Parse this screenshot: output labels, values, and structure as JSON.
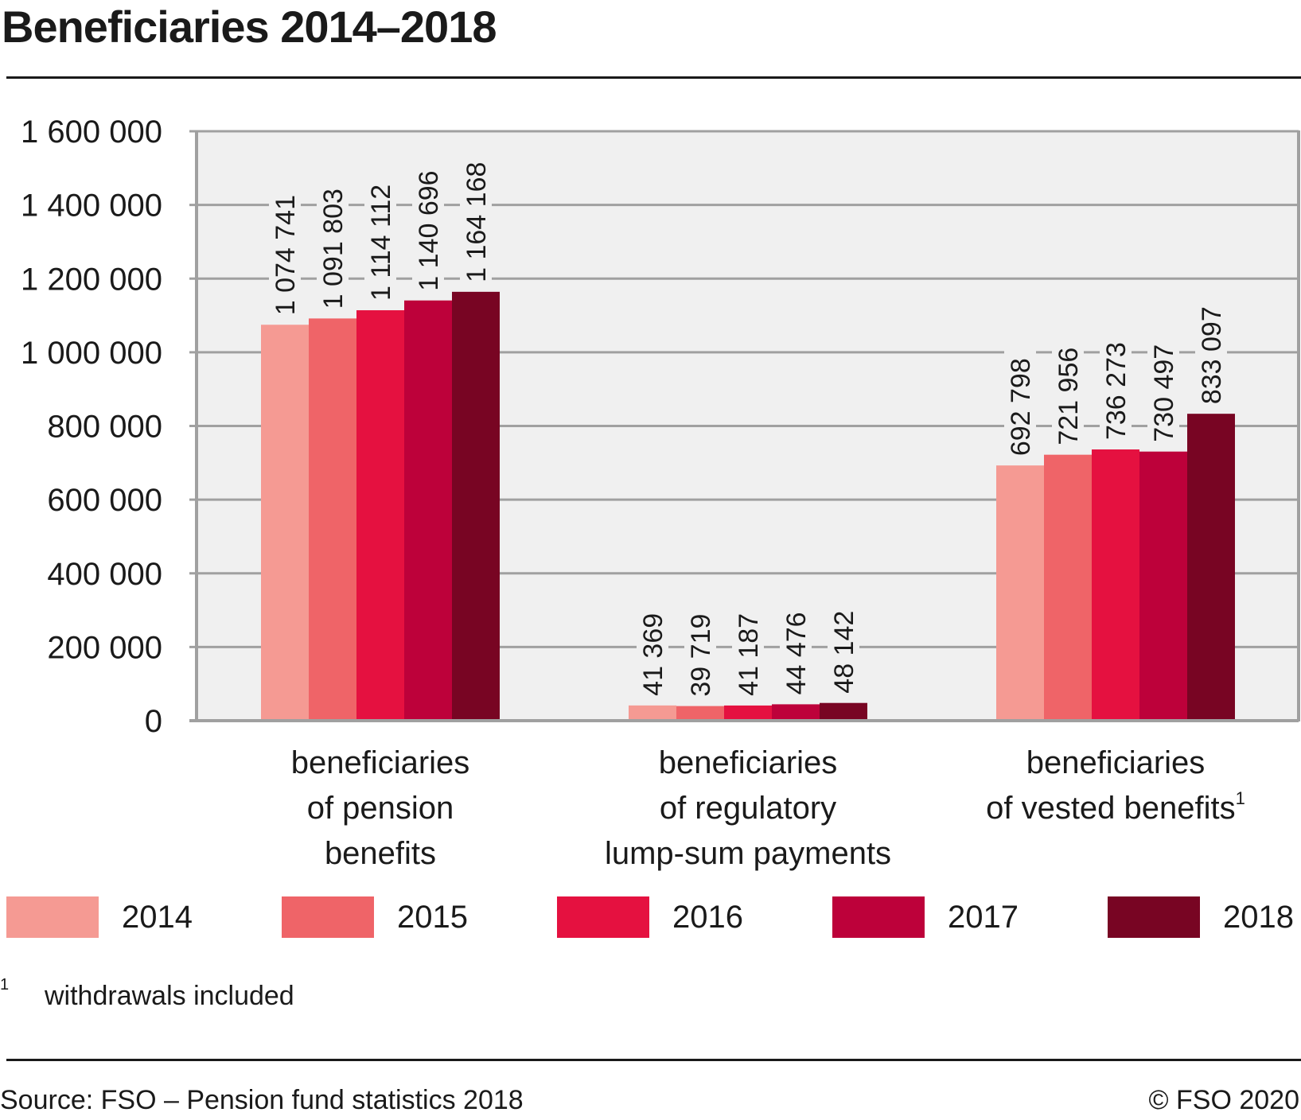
{
  "chart_data": {
    "type": "bar",
    "title": "Beneficiaries 2014–2018",
    "xlabel": "",
    "ylabel": "",
    "ylim": [
      0,
      1600000
    ],
    "yticks": [
      0,
      200000,
      400000,
      600000,
      800000,
      1000000,
      1200000,
      1400000,
      1600000
    ],
    "ytick_labels": [
      "0",
      "200 000",
      "400 000",
      "600 000",
      "800 000",
      "1 000 000",
      "1 200 000",
      "1 400 000",
      "1 600 000"
    ],
    "grid": true,
    "categories": [
      {
        "lines": [
          "beneficiaries",
          "of pension",
          "benefits"
        ],
        "superscript": ""
      },
      {
        "lines": [
          "beneficiaries",
          "of regulatory",
          "lump-sum payments"
        ],
        "superscript": ""
      },
      {
        "lines": [
          "beneficiaries",
          "of vested benefits"
        ],
        "superscript": "1"
      }
    ],
    "series": [
      {
        "name": "2014",
        "color": "#F59A93",
        "values": [
          1074741,
          41369,
          692798
        ],
        "labels": [
          "1 074 741",
          "41 369",
          "692 798"
        ]
      },
      {
        "name": "2015",
        "color": "#EF6468",
        "values": [
          1091803,
          39719,
          721956
        ],
        "labels": [
          "1 091 803",
          "39 719",
          "721 956"
        ]
      },
      {
        "name": "2016",
        "color": "#E51140",
        "values": [
          1114112,
          41187,
          736273
        ],
        "labels": [
          "1 114 112",
          "41 187",
          "736 273"
        ]
      },
      {
        "name": "2017",
        "color": "#BD013A",
        "values": [
          1140696,
          44476,
          730497
        ],
        "labels": [
          "1 140 696",
          "44 476",
          "730 497"
        ]
      },
      {
        "name": "2018",
        "color": "#780523",
        "values": [
          1164168,
          48142,
          833097
        ],
        "labels": [
          "1 164 168",
          "48 142",
          "833 097"
        ]
      }
    ],
    "legend_position": "bottom"
  },
  "footnote": {
    "mark": "1",
    "text": "withdrawals included"
  },
  "source": "Source: FSO – Pension fund statistics 2018",
  "copyright": "© FSO 2020",
  "colors": {
    "plot_background": "#F0F0F0",
    "gridline": "#A0A0A0",
    "text": "#1a1a1a"
  }
}
